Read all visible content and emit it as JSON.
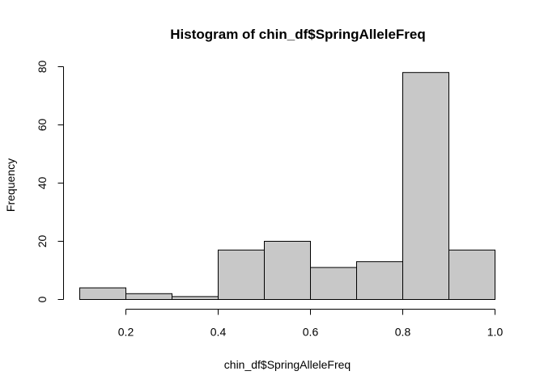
{
  "chart_data": {
    "type": "bar",
    "title": "Histogram of chin_df$SpringAlleleFreq",
    "xlabel": "chin_df$SpringAlleleFreq",
    "ylabel": "Frequency",
    "bins": [
      {
        "start": 0.1,
        "end": 0.2,
        "count": 4
      },
      {
        "start": 0.2,
        "end": 0.3,
        "count": 2
      },
      {
        "start": 0.3,
        "end": 0.4,
        "count": 1
      },
      {
        "start": 0.4,
        "end": 0.5,
        "count": 17
      },
      {
        "start": 0.5,
        "end": 0.6,
        "count": 20
      },
      {
        "start": 0.6,
        "end": 0.7,
        "count": 11
      },
      {
        "start": 0.7,
        "end": 0.8,
        "count": 13
      },
      {
        "start": 0.8,
        "end": 0.9,
        "count": 78
      },
      {
        "start": 0.9,
        "end": 1.0,
        "count": 17
      }
    ],
    "xlim": [
      0.1,
      1.0
    ],
    "ylim": [
      0,
      80
    ],
    "xticks": [
      0.2,
      0.4,
      0.6,
      0.8,
      1.0
    ],
    "xtick_labels": [
      "0.2",
      "0.4",
      "0.6",
      "0.8",
      "1.0"
    ],
    "yticks": [
      0,
      20,
      40,
      60,
      80
    ],
    "ytick_labels": [
      "0",
      "20",
      "40",
      "60",
      "80"
    ],
    "grid": false,
    "bar_color": "#c8c8c8"
  }
}
